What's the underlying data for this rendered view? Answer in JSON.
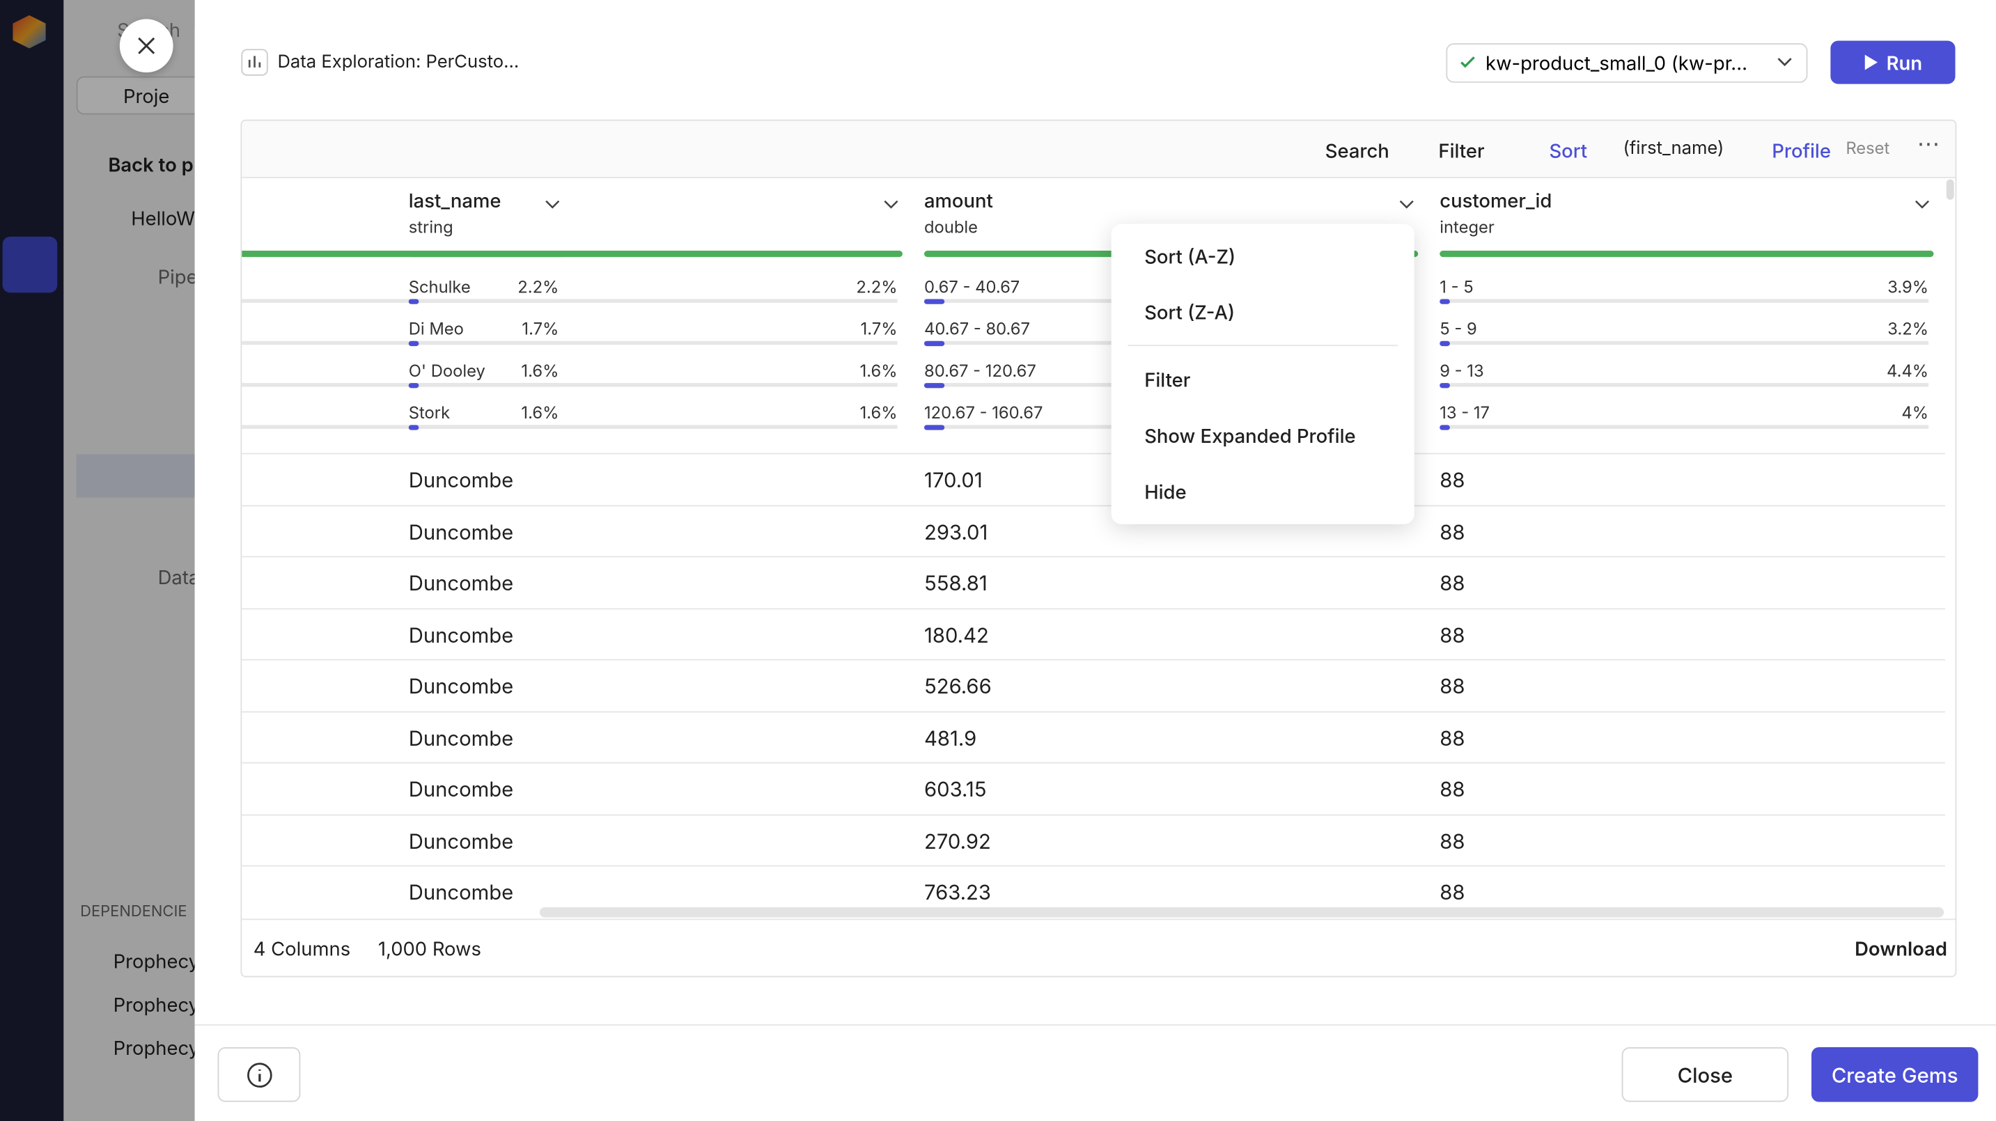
{
  "sidebar": {
    "search": "Search",
    "project_button": "Proje",
    "back": "Back to p",
    "project": "HelloW",
    "pipelines": "Pipe",
    "datasets": "Data",
    "dependencies": "DEPENDENCIE",
    "dependency_items": [
      "Prophecy",
      "Prophecy",
      "Prophecy"
    ]
  },
  "header": {
    "title": "Data Exploration: PerCusto...",
    "cluster": "kw-product_small_0 (kw-pr...",
    "run": "Run"
  },
  "toolbar": {
    "search": "Search",
    "filter": "Filter",
    "sort": "Sort",
    "sort_column": "(first_name)",
    "profile": "Profile",
    "reset": "Reset"
  },
  "table": {
    "columns": [
      {
        "name": null,
        "type": null,
        "profile": [
          {
            "label": null,
            "pct": "2.2%"
          },
          {
            "label": null,
            "pct": "1.7%"
          },
          {
            "label": null,
            "pct": "1.6%"
          },
          {
            "label": null,
            "pct": "1.6%"
          }
        ]
      },
      {
        "name": "last_name",
        "type": "string",
        "profile": [
          {
            "label": "Schulke",
            "pct": "2.2%"
          },
          {
            "label": "Di Meo",
            "pct": "1.7%"
          },
          {
            "label": "O' Dooley",
            "pct": "1.6%"
          },
          {
            "label": "Stork",
            "pct": "1.6%"
          }
        ]
      },
      {
        "name": "amount",
        "type": "double",
        "profile": [
          {
            "label": "0.67 - 40.67",
            "pct": null
          },
          {
            "label": "40.67 - 80.67",
            "pct": null
          },
          {
            "label": "80.67 - 120.67",
            "pct": null
          },
          {
            "label": "120.67 - 160.67",
            "pct": null
          }
        ]
      },
      {
        "name": "customer_id",
        "type": "integer",
        "profile": [
          {
            "label": "1 - 5",
            "pct": "3.9%"
          },
          {
            "label": "5 - 9",
            "pct": "3.2%"
          },
          {
            "label": "9 - 13",
            "pct": "4.4%"
          },
          {
            "label": "13 - 17",
            "pct": "4%"
          }
        ]
      }
    ],
    "rows": [
      [
        "Duncombe",
        170.01,
        88
      ],
      [
        "Duncombe",
        293.01,
        88
      ],
      [
        "Duncombe",
        558.81,
        88
      ],
      [
        "Duncombe",
        180.42,
        88
      ],
      [
        "Duncombe",
        526.66,
        88
      ],
      [
        "Duncombe",
        481.9,
        88
      ],
      [
        "Duncombe",
        603.15,
        88
      ],
      [
        "Duncombe",
        270.92,
        88
      ],
      [
        "Duncombe",
        763.23,
        88
      ]
    ]
  },
  "context_menu": {
    "items": [
      "Sort (A-Z)",
      "Sort (Z-A)",
      "Filter",
      "Show Expanded Profile",
      "Hide"
    ]
  },
  "footer": {
    "columns": "4 Columns",
    "rows": "1,000 Rows",
    "download": "Download"
  },
  "actions": {
    "close": "Close",
    "create": "Create Gems"
  }
}
